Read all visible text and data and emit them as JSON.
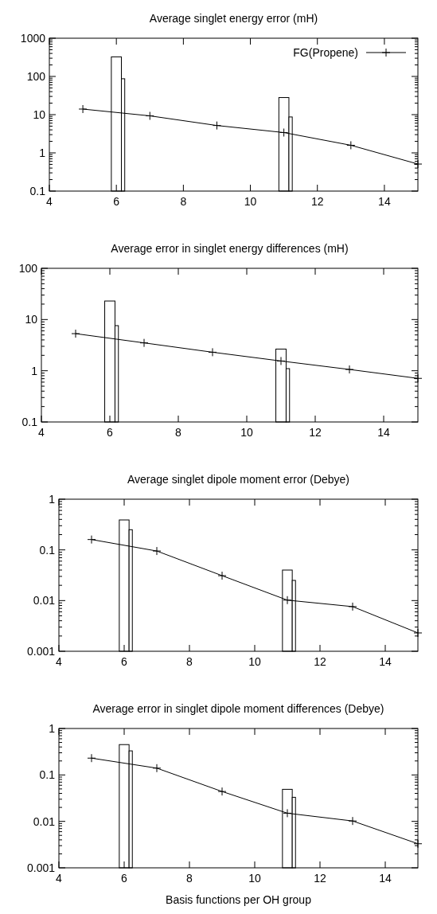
{
  "chart_data": [
    {
      "type": "line",
      "title": "Average singlet energy error (mH)",
      "log": "y",
      "xlim": [
        4,
        15
      ],
      "xticks": [
        4,
        6,
        8,
        10,
        12,
        14
      ],
      "ylim": [
        0.1,
        1000
      ],
      "yticks": [
        0.1,
        1,
        10,
        100,
        1000
      ],
      "legend": "top right",
      "marker": "cross",
      "grid": false,
      "series": [
        {
          "name": "FG(Propene)",
          "color": "#000000",
          "x": [
            5,
            7,
            9,
            11,
            13,
            15
          ],
          "values": [
            14,
            9.3,
            5.2,
            3.4,
            1.58,
            0.51
          ]
        },
        {
          "type": "bar",
          "color": "#000000",
          "x": [
            6,
            11
          ],
          "values": [
            325,
            28
          ]
        },
        {
          "type": "bar",
          "color": "#000000",
          "x": [
            6.2,
            11.2
          ],
          "values": [
            87,
            8.7
          ]
        }
      ]
    },
    {
      "type": "line",
      "title": "Average error in singlet energy differences (mH)",
      "log": "y",
      "xlim": [
        4,
        15
      ],
      "xticks": [
        4,
        6,
        8,
        10,
        12,
        14
      ],
      "ylim": [
        0.1,
        100
      ],
      "yticks": [
        0.1,
        1,
        10,
        100
      ],
      "marker": "cross",
      "grid": false,
      "series": [
        {
          "color": "#000000",
          "x": [
            5,
            7,
            9,
            11,
            13,
            15
          ],
          "values": [
            5.3,
            3.5,
            2.3,
            1.55,
            1.06,
            0.71
          ]
        },
        {
          "type": "bar",
          "color": "#000000",
          "x": [
            6,
            11
          ],
          "values": [
            23,
            2.65
          ]
        },
        {
          "type": "bar",
          "color": "#000000",
          "x": [
            6.2,
            11.2
          ],
          "values": [
            7.6,
            1.1
          ]
        }
      ]
    },
    {
      "type": "line",
      "title": "Average singlet dipole moment error (Debye)",
      "log": "y",
      "xlim": [
        4,
        15
      ],
      "xticks": [
        4,
        6,
        8,
        10,
        12,
        14
      ],
      "ylim": [
        0.001,
        1
      ],
      "yticks": [
        0.001,
        0.01,
        0.1,
        1
      ],
      "marker": "cross",
      "grid": false,
      "series": [
        {
          "color": "#000000",
          "x": [
            5,
            7,
            9,
            11,
            13,
            15
          ],
          "values": [
            0.16,
            0.095,
            0.031,
            0.0102,
            0.0076,
            0.0023
          ]
        },
        {
          "type": "bar",
          "color": "#000000",
          "x": [
            6,
            11
          ],
          "values": [
            0.39,
            0.04
          ]
        },
        {
          "type": "bar",
          "color": "#000000",
          "x": [
            6.2,
            11.2
          ],
          "values": [
            0.25,
            0.025
          ]
        }
      ]
    },
    {
      "type": "line",
      "title": "Average error in singlet dipole moment differences (Debye)",
      "xlabel": "Basis functions per OH group",
      "log": "y",
      "xlim": [
        4,
        15
      ],
      "xticks": [
        4,
        6,
        8,
        10,
        12,
        14
      ],
      "ylim": [
        0.001,
        1
      ],
      "yticks": [
        0.001,
        0.01,
        0.1,
        1
      ],
      "marker": "cross",
      "grid": false,
      "series": [
        {
          "color": "#000000",
          "x": [
            5,
            7,
            9,
            11,
            13,
            15
          ],
          "values": [
            0.23,
            0.14,
            0.044,
            0.015,
            0.0102,
            0.0033
          ]
        },
        {
          "type": "bar",
          "color": "#000000",
          "x": [
            6,
            11
          ],
          "values": [
            0.45,
            0.049
          ]
        },
        {
          "type": "bar",
          "color": "#000000",
          "x": [
            6.2,
            11.2
          ],
          "values": [
            0.33,
            0.033
          ]
        }
      ]
    }
  ]
}
